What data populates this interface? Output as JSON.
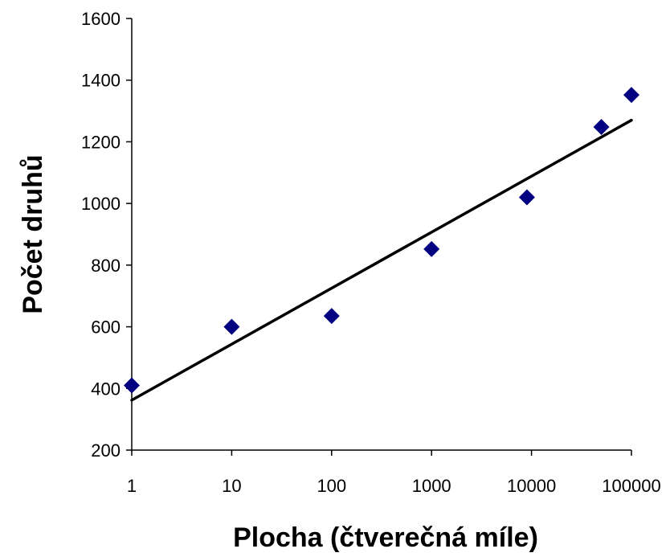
{
  "chart_data": {
    "type": "scatter",
    "title": "",
    "xlabel": "Plocha (čtverečná míle)",
    "ylabel": "Počet druhů",
    "x_scale": "log",
    "xlim": [
      1,
      100000
    ],
    "ylim": [
      200,
      1600
    ],
    "x_ticks": [
      "1",
      "10",
      "100",
      "1000",
      "10000",
      "100000"
    ],
    "y_ticks": [
      "200",
      "400",
      "600",
      "800",
      "1000",
      "1200",
      "1400",
      "1600"
    ],
    "grid": false,
    "legend": "none",
    "series": [
      {
        "marker": "diamond",
        "color": "#000080",
        "x": [
          1,
          10,
          100,
          1000,
          9000,
          50000,
          100000
        ],
        "y": [
          410,
          600,
          635,
          852,
          1020,
          1248,
          1352
        ]
      }
    ],
    "trendline": {
      "color": "#000000",
      "x": [
        1,
        100000
      ],
      "y": [
        362,
        1270
      ]
    }
  }
}
